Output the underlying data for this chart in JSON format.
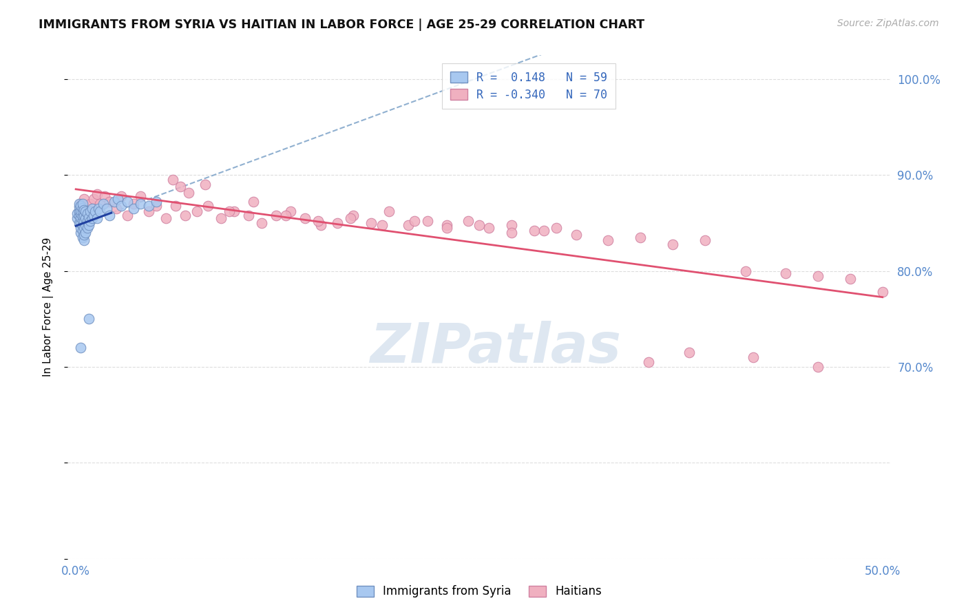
{
  "title": "IMMIGRANTS FROM SYRIA VS HAITIAN IN LABOR FORCE | AGE 25-29 CORRELATION CHART",
  "source": "Source: ZipAtlas.com",
  "ylabel": "In Labor Force | Age 25-29",
  "xlim": [
    -0.005,
    0.505
  ],
  "ylim": [
    0.5,
    1.025
  ],
  "right_ytick_vals": [
    0.7,
    0.8,
    0.9,
    1.0
  ],
  "right_ytick_labels": [
    "70.0%",
    "80.0%",
    "90.0%",
    "100.0%"
  ],
  "xtick_vals": [
    0.0,
    0.1,
    0.2,
    0.3,
    0.4,
    0.5
  ],
  "xtick_labels": [
    "0.0%",
    "",
    "",
    "",
    "",
    "50.0%"
  ],
  "legend_color1": "#a8c8f0",
  "legend_color2": "#f0b0c0",
  "scatter_color_syria": "#a8c8f0",
  "scatter_color_haiti": "#f0b0c0",
  "scatter_edge_syria": "#7090c0",
  "scatter_edge_haiti": "#d080a0",
  "line_color_syria": "#2040a0",
  "line_color_haiti": "#e05070",
  "line_color_dashed": "#90b0d0",
  "watermark_color": "#c8d8e8",
  "title_color": "#111111",
  "source_color": "#aaaaaa",
  "axis_label_color": "#5588cc",
  "grid_color": "#dddddd",
  "syria_x": [
    0.001,
    0.001,
    0.002,
    0.002,
    0.002,
    0.002,
    0.002,
    0.003,
    0.003,
    0.003,
    0.003,
    0.003,
    0.003,
    0.003,
    0.004,
    0.004,
    0.004,
    0.004,
    0.004,
    0.004,
    0.004,
    0.004,
    0.005,
    0.005,
    0.005,
    0.005,
    0.005,
    0.005,
    0.006,
    0.006,
    0.006,
    0.006,
    0.007,
    0.007,
    0.007,
    0.008,
    0.008,
    0.009,
    0.009,
    0.01,
    0.01,
    0.011,
    0.012,
    0.013,
    0.014,
    0.015,
    0.017,
    0.019,
    0.021,
    0.024,
    0.026,
    0.028,
    0.032,
    0.036,
    0.04,
    0.045,
    0.05,
    0.008,
    0.003
  ],
  "syria_y": [
    0.855,
    0.86,
    0.85,
    0.858,
    0.862,
    0.867,
    0.87,
    0.84,
    0.845,
    0.85,
    0.856,
    0.86,
    0.863,
    0.868,
    0.835,
    0.842,
    0.848,
    0.853,
    0.857,
    0.862,
    0.866,
    0.87,
    0.832,
    0.838,
    0.845,
    0.852,
    0.858,
    0.864,
    0.84,
    0.848,
    0.855,
    0.862,
    0.845,
    0.852,
    0.86,
    0.848,
    0.856,
    0.852,
    0.862,
    0.855,
    0.865,
    0.858,
    0.862,
    0.855,
    0.865,
    0.862,
    0.87,
    0.865,
    0.858,
    0.872,
    0.875,
    0.868,
    0.872,
    0.865,
    0.87,
    0.868,
    0.872,
    0.75,
    0.72
  ],
  "haiti_x": [
    0.003,
    0.005,
    0.007,
    0.009,
    0.011,
    0.013,
    0.015,
    0.018,
    0.021,
    0.025,
    0.028,
    0.032,
    0.036,
    0.04,
    0.045,
    0.05,
    0.056,
    0.062,
    0.068,
    0.075,
    0.082,
    0.09,
    0.098,
    0.107,
    0.115,
    0.124,
    0.133,
    0.142,
    0.152,
    0.162,
    0.172,
    0.183,
    0.194,
    0.206,
    0.218,
    0.23,
    0.243,
    0.256,
    0.27,
    0.284,
    0.298,
    0.06,
    0.065,
    0.07,
    0.08,
    0.095,
    0.11,
    0.13,
    0.15,
    0.17,
    0.19,
    0.21,
    0.23,
    0.25,
    0.27,
    0.29,
    0.31,
    0.33,
    0.35,
    0.37,
    0.39,
    0.415,
    0.44,
    0.46,
    0.48,
    0.5,
    0.38,
    0.42,
    0.355,
    0.46
  ],
  "haiti_y": [
    0.87,
    0.875,
    0.865,
    0.87,
    0.875,
    0.88,
    0.87,
    0.878,
    0.872,
    0.865,
    0.878,
    0.858,
    0.87,
    0.878,
    0.862,
    0.868,
    0.855,
    0.868,
    0.858,
    0.862,
    0.868,
    0.855,
    0.862,
    0.858,
    0.85,
    0.858,
    0.862,
    0.855,
    0.848,
    0.85,
    0.858,
    0.85,
    0.862,
    0.848,
    0.852,
    0.848,
    0.852,
    0.845,
    0.848,
    0.842,
    0.845,
    0.895,
    0.888,
    0.882,
    0.89,
    0.862,
    0.872,
    0.858,
    0.852,
    0.855,
    0.848,
    0.852,
    0.845,
    0.848,
    0.84,
    0.842,
    0.838,
    0.832,
    0.835,
    0.828,
    0.832,
    0.8,
    0.798,
    0.795,
    0.792,
    0.778,
    0.715,
    0.71,
    0.705,
    0.7
  ]
}
